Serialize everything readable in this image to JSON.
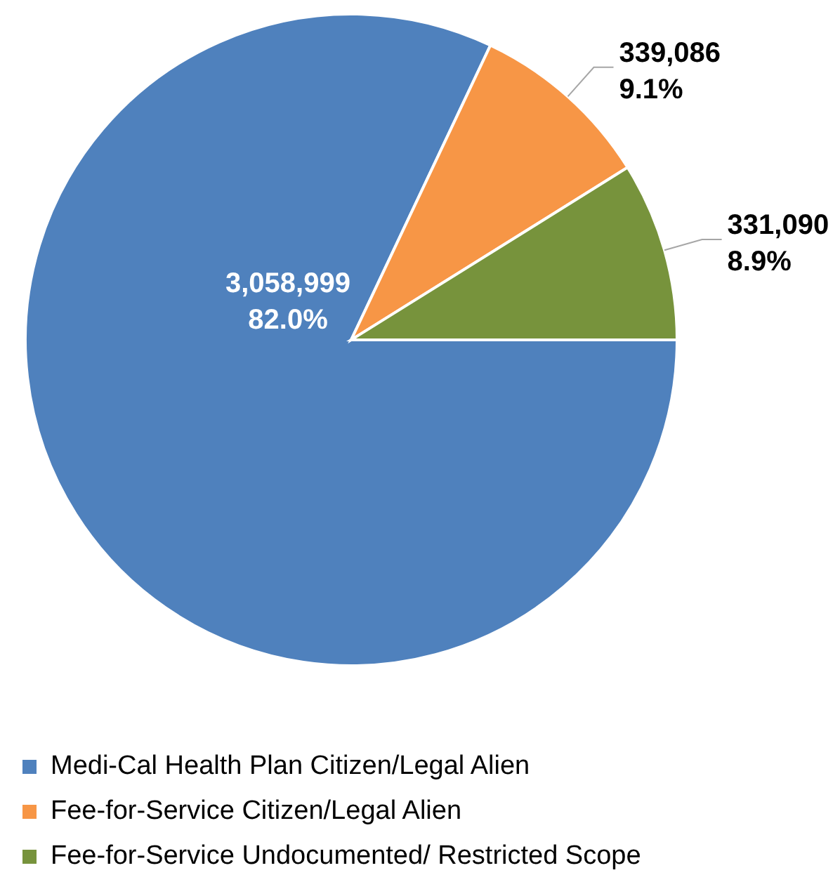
{
  "chart_data": {
    "type": "pie",
    "categories": [
      "Medi-Cal Health Plan Citizen/Legal Alien",
      "Fee-for-Service Citizen/Legal Alien",
      "Fee-for-Service Undocumented/ Restricted Scope"
    ],
    "values": [
      3058999,
      339086,
      331090
    ],
    "colors": [
      "#4f81bd",
      "#f79646",
      "#77933c"
    ],
    "value_labels": [
      "3,058,999\n82.0%",
      "339,086\n9.1%",
      "331,090\n8.9%"
    ],
    "legend": "bottom"
  }
}
